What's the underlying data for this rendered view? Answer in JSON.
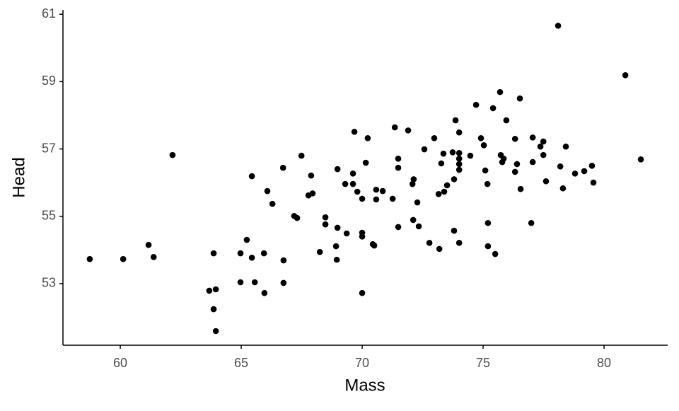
{
  "chart_data": {
    "type": "scatter",
    "x_label": "Mass",
    "y_label": "Head",
    "color": "#000000",
    "x": [
      58.74,
      60.12,
      61.17,
      61.38,
      62.16,
      63.68,
      63.86,
      63.95,
      63.95,
      63.86,
      64.97,
      64.97,
      65.23,
      65.44,
      65.44,
      65.56,
      65.94,
      65.96,
      66.08,
      66.29,
      66.73,
      66.75,
      66.75,
      67.19,
      67.31,
      67.49,
      67.78,
      67.89,
      67.95,
      68.25,
      68.48,
      68.48,
      68.92,
      68.95,
      68.98,
      68.98,
      69.3,
      69.36,
      69.62,
      69.68,
      69.62,
      69.8,
      70.0,
      70.0,
      70.0,
      70.0,
      70.15,
      70.23,
      70.44,
      70.5,
      70.58,
      70.58,
      70.85,
      71.26,
      71.35,
      71.49,
      71.49,
      71.49,
      71.9,
      72.08,
      72.13,
      72.11,
      72.28,
      72.34,
      72.57,
      72.78,
      72.98,
      73.19,
      73.16,
      73.27,
      73.36,
      73.39,
      73.51,
      73.74,
      73.8,
      73.8,
      73.86,
      74.01,
      74.01,
      74.01,
      74.01,
      74.01,
      74.01,
      74.47,
      74.71,
      74.91,
      75.03,
      75.09,
      75.18,
      75.2,
      75.2,
      75.41,
      75.5,
      75.7,
      75.73,
      75.79,
      75.85,
      75.96,
      76.32,
      76.32,
      76.4,
      76.52,
      76.55,
      76.99,
      77.05,
      77.05,
      77.37,
      77.49,
      77.49,
      77.6,
      78.1,
      78.19,
      78.3,
      78.42,
      78.8,
      79.18,
      79.5,
      79.56,
      80.88,
      81.52
    ],
    "values": [
      53.73,
      53.73,
      54.15,
      53.79,
      56.82,
      52.79,
      52.24,
      52.83,
      51.59,
      53.9,
      53.9,
      53.04,
      54.3,
      53.77,
      56.19,
      53.04,
      53.9,
      52.72,
      55.75,
      55.37,
      56.44,
      53.69,
      53.02,
      55.01,
      54.95,
      56.8,
      55.62,
      56.21,
      55.68,
      53.94,
      54.97,
      54.76,
      54.11,
      53.71,
      54.66,
      56.4,
      55.96,
      54.49,
      55.96,
      57.51,
      56.27,
      55.73,
      55.52,
      54.51,
      54.4,
      52.72,
      56.59,
      57.32,
      54.17,
      54.13,
      55.79,
      55.5,
      55.75,
      55.52,
      57.64,
      56.71,
      56.44,
      54.68,
      57.55,
      55.96,
      56.1,
      54.89,
      55.41,
      54.7,
      56.99,
      54.21,
      57.32,
      54.03,
      55.66,
      56.57,
      56.86,
      55.73,
      55.92,
      56.9,
      54.57,
      56.1,
      57.85,
      54.21,
      56.38,
      56.55,
      56.88,
      56.71,
      57.49,
      56.8,
      58.31,
      57.32,
      57.11,
      56.36,
      55.96,
      54.8,
      54.11,
      58.21,
      53.88,
      58.69,
      56.82,
      56.61,
      56.71,
      57.85,
      56.32,
      57.3,
      56.55,
      58.5,
      55.81,
      54.8,
      57.34,
      56.61,
      57.07,
      57.22,
      56.82,
      56.04,
      60.66,
      56.48,
      55.83,
      57.07,
      56.27,
      56.34,
      56.5,
      56.0,
      59.19,
      56.69
    ],
    "xlim": [
      57.63,
      82.63
    ],
    "ylim": [
      51.17,
      61.13
    ],
    "xticks": [
      60,
      65,
      70,
      75,
      80
    ],
    "yticks": [
      53,
      55,
      57,
      59,
      61
    ],
    "grid": false
  }
}
